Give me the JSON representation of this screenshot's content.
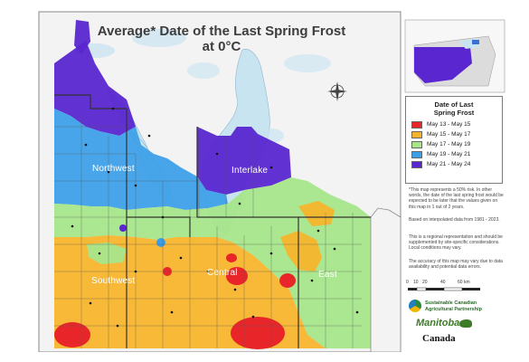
{
  "title_line1": "Average* Date of the Last Spring Frost",
  "title_line2": "at 0°C",
  "regions": {
    "northwest": "Northwest",
    "interlake": "Interlake",
    "southwest": "Southwest",
    "central": "Central",
    "east": "East"
  },
  "legend": {
    "title_line1": "Date of Last",
    "title_line2": "Spring Frost",
    "items": [
      {
        "label": "May 13 - May 15",
        "color": "#e8262a"
      },
      {
        "label": "May 15 - May 17",
        "color": "#f7b52c"
      },
      {
        "label": "May 17 - May 19",
        "color": "#a6e58a"
      },
      {
        "label": "May 19 - May 21",
        "color": "#3b9ee8"
      },
      {
        "label": "May 21 - May 24",
        "color": "#5a26cf"
      }
    ]
  },
  "notes": {
    "note1": "*This map represents a 50% risk. In other words, the date of the last spring frost would be expected to be later that the values given on this map in 1 out of 2 years.",
    "note2": "Based on interpolated data from 1981 - 2023.",
    "note3": "This is a regional representation and should be supplemented by site-specific considerations. Local conditions may vary.",
    "note4": "The accuracy of this map may vary due to data availability and potential data errors."
  },
  "scale_bar": {
    "ticks": [
      "0",
      "10",
      "20",
      "40",
      "60 km"
    ]
  },
  "logos": {
    "partnership_line1": "Sustainable Canadian",
    "partnership_line2": "Agricultural Partnership",
    "manitoba": "Manitoba",
    "canada": "Canada"
  },
  "colors": {
    "water": "#c9e4f1",
    "land_white": "#f2f2f2",
    "purple": "#5a26cf",
    "blue": "#3b9ee8",
    "green": "#a6e58a",
    "orange": "#f7b52c",
    "red": "#e8262a"
  }
}
